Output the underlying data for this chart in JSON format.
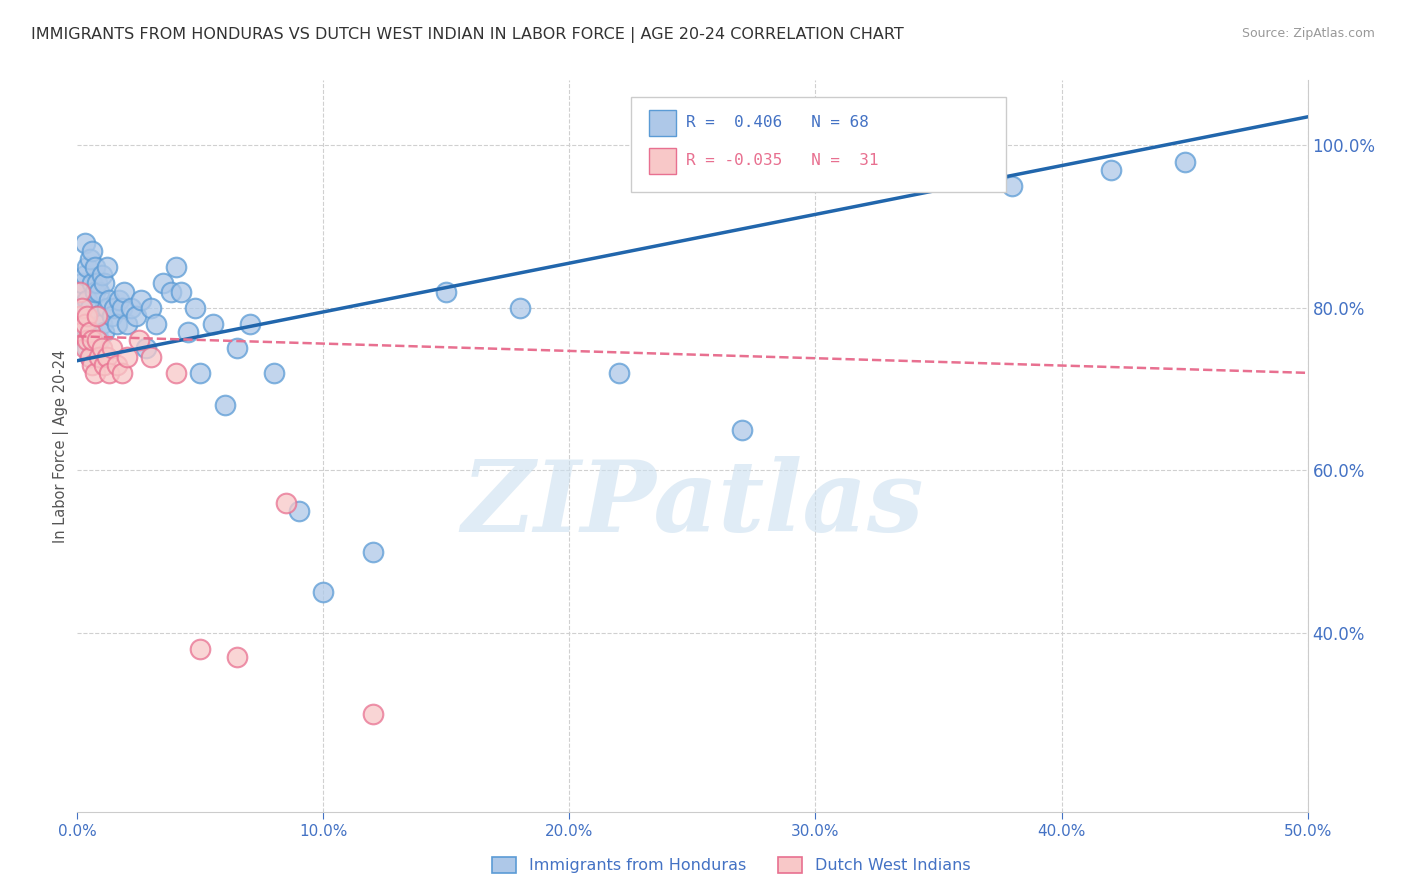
{
  "title": "IMMIGRANTS FROM HONDURAS VS DUTCH WEST INDIAN IN LABOR FORCE | AGE 20-24 CORRELATION CHART",
  "source": "Source: ZipAtlas.com",
  "ylabel": "In Labor Force | Age 20-24",
  "legend_blue_label": "R =  0.406   N = 68",
  "legend_pink_label": "R = -0.035   N =  31",
  "legend_bottom_blue": "Immigrants from Honduras",
  "legend_bottom_pink": "Dutch West Indians",
  "blue_color": "#aec8e8",
  "blue_edge": "#5b9bd5",
  "pink_color": "#f8c8c8",
  "pink_edge": "#e87090",
  "blue_line_color": "#2166ac",
  "pink_line_color": "#e87090",
  "background": "#ffffff",
  "grid_color": "#d0d0d0",
  "axis_color": "#4472c4",
  "watermark_color": "#cce0f0",
  "xmin": 0.0,
  "xmax": 0.5,
  "ymin": 0.18,
  "ymax": 1.08,
  "blue_scatter_x": [
    0.001,
    0.001,
    0.001,
    0.002,
    0.002,
    0.002,
    0.003,
    0.003,
    0.003,
    0.003,
    0.004,
    0.004,
    0.004,
    0.005,
    0.005,
    0.005,
    0.006,
    0.006,
    0.006,
    0.007,
    0.007,
    0.007,
    0.008,
    0.008,
    0.009,
    0.009,
    0.01,
    0.01,
    0.011,
    0.011,
    0.012,
    0.012,
    0.013,
    0.014,
    0.015,
    0.016,
    0.017,
    0.018,
    0.019,
    0.02,
    0.022,
    0.024,
    0.026,
    0.028,
    0.03,
    0.032,
    0.035,
    0.038,
    0.04,
    0.042,
    0.045,
    0.048,
    0.05,
    0.055,
    0.06,
    0.065,
    0.07,
    0.08,
    0.09,
    0.1,
    0.12,
    0.15,
    0.18,
    0.22,
    0.27,
    0.38,
    0.42,
    0.45
  ],
  "blue_scatter_y": [
    0.77,
    0.79,
    0.82,
    0.78,
    0.8,
    0.83,
    0.76,
    0.79,
    0.84,
    0.88,
    0.75,
    0.81,
    0.85,
    0.74,
    0.8,
    0.86,
    0.77,
    0.83,
    0.87,
    0.76,
    0.82,
    0.85,
    0.79,
    0.83,
    0.76,
    0.82,
    0.78,
    0.84,
    0.77,
    0.83,
    0.8,
    0.85,
    0.81,
    0.79,
    0.8,
    0.78,
    0.81,
    0.8,
    0.82,
    0.78,
    0.8,
    0.79,
    0.81,
    0.75,
    0.8,
    0.78,
    0.83,
    0.82,
    0.85,
    0.82,
    0.77,
    0.8,
    0.72,
    0.78,
    0.68,
    0.75,
    0.78,
    0.72,
    0.55,
    0.45,
    0.5,
    0.82,
    0.8,
    0.72,
    0.65,
    0.95,
    0.97,
    0.98
  ],
  "pink_scatter_x": [
    0.001,
    0.001,
    0.002,
    0.002,
    0.003,
    0.003,
    0.004,
    0.004,
    0.005,
    0.005,
    0.006,
    0.006,
    0.007,
    0.008,
    0.008,
    0.009,
    0.01,
    0.011,
    0.012,
    0.013,
    0.014,
    0.016,
    0.018,
    0.02,
    0.025,
    0.03,
    0.04,
    0.05,
    0.065,
    0.085,
    0.12
  ],
  "pink_scatter_y": [
    0.79,
    0.82,
    0.77,
    0.8,
    0.75,
    0.78,
    0.76,
    0.79,
    0.74,
    0.77,
    0.73,
    0.76,
    0.72,
    0.76,
    0.79,
    0.74,
    0.75,
    0.73,
    0.74,
    0.72,
    0.75,
    0.73,
    0.72,
    0.74,
    0.76,
    0.74,
    0.72,
    0.38,
    0.37,
    0.56,
    0.3
  ],
  "blue_line_x": [
    0.0,
    0.5
  ],
  "blue_line_y": [
    0.735,
    1.035
  ],
  "pink_line_x": [
    0.0,
    0.5
  ],
  "pink_line_y": [
    0.765,
    0.72
  ]
}
